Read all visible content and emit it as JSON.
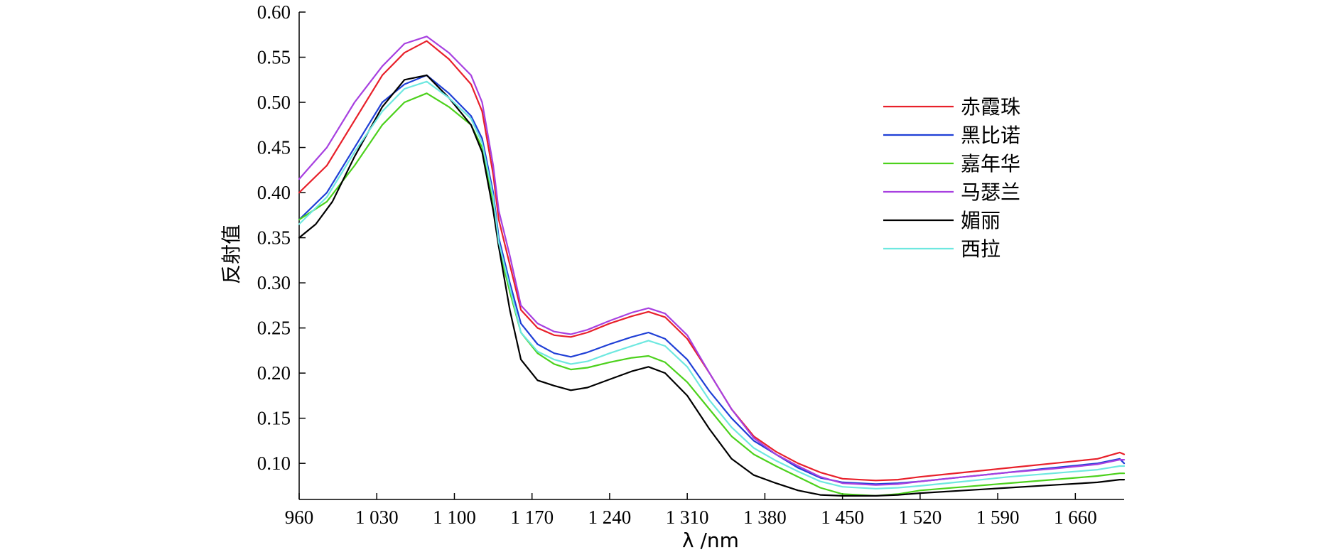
{
  "chart_data": {
    "type": "line",
    "xlabel": "λ /nm",
    "ylabel": "反射值",
    "xlim": [
      960,
      1704
    ],
    "ylim": [
      0.06,
      0.6
    ],
    "xticks": [
      960,
      1030,
      1100,
      1170,
      1240,
      1310,
      1380,
      1450,
      1520,
      1590,
      1660
    ],
    "xtick_labels": [
      "960",
      "1 030",
      "1 100",
      "1 170",
      "1 240",
      "1 310",
      "1 380",
      "1 450",
      "1 520",
      "1 590",
      "1 660"
    ],
    "yticks": [
      0.1,
      0.15,
      0.2,
      0.25,
      0.3,
      0.35,
      0.4,
      0.45,
      0.5,
      0.55,
      0.6
    ],
    "ytick_labels": [
      "0.10",
      "0.15",
      "0.20",
      "0.25",
      "0.30",
      "0.35",
      "0.40",
      "0.45",
      "0.50",
      "0.55",
      "0.60"
    ],
    "grid": false,
    "legend_position": "top-right",
    "series": [
      {
        "name": "赤霞珠",
        "color": "#e8202a",
        "x": [
          960,
          985,
          1010,
          1035,
          1055,
          1075,
          1095,
          1115,
          1125,
          1135,
          1140,
          1150,
          1160,
          1175,
          1190,
          1205,
          1220,
          1240,
          1260,
          1275,
          1290,
          1310,
          1330,
          1350,
          1370,
          1390,
          1410,
          1430,
          1450,
          1480,
          1500,
          1520,
          1560,
          1600,
          1640,
          1680,
          1700,
          1704
        ],
        "y": [
          0.4,
          0.43,
          0.48,
          0.53,
          0.555,
          0.568,
          0.548,
          0.52,
          0.49,
          0.42,
          0.37,
          0.32,
          0.27,
          0.25,
          0.242,
          0.24,
          0.245,
          0.255,
          0.263,
          0.268,
          0.262,
          0.238,
          0.2,
          0.16,
          0.13,
          0.113,
          0.1,
          0.09,
          0.083,
          0.081,
          0.082,
          0.085,
          0.09,
          0.095,
          0.1,
          0.105,
          0.112,
          0.11
        ]
      },
      {
        "name": "黑比诺",
        "color": "#1f3fd6",
        "x": [
          960,
          985,
          1010,
          1035,
          1055,
          1075,
          1095,
          1115,
          1125,
          1135,
          1140,
          1150,
          1160,
          1175,
          1190,
          1205,
          1220,
          1240,
          1260,
          1275,
          1290,
          1310,
          1330,
          1350,
          1370,
          1390,
          1410,
          1430,
          1450,
          1480,
          1500,
          1520,
          1560,
          1600,
          1640,
          1680,
          1700,
          1704
        ],
        "y": [
          0.37,
          0.4,
          0.45,
          0.5,
          0.52,
          0.53,
          0.51,
          0.485,
          0.46,
          0.4,
          0.35,
          0.3,
          0.255,
          0.232,
          0.222,
          0.218,
          0.223,
          0.232,
          0.24,
          0.245,
          0.238,
          0.215,
          0.18,
          0.15,
          0.125,
          0.11,
          0.095,
          0.084,
          0.079,
          0.077,
          0.078,
          0.08,
          0.085,
          0.09,
          0.095,
          0.1,
          0.105,
          0.1
        ]
      },
      {
        "name": "嘉年华",
        "color": "#4cd11c",
        "x": [
          960,
          985,
          1010,
          1035,
          1055,
          1075,
          1095,
          1115,
          1125,
          1135,
          1140,
          1150,
          1160,
          1175,
          1190,
          1205,
          1220,
          1240,
          1260,
          1275,
          1290,
          1310,
          1330,
          1350,
          1370,
          1390,
          1410,
          1430,
          1450,
          1480,
          1500,
          1520,
          1560,
          1600,
          1640,
          1680,
          1700,
          1704
        ],
        "y": [
          0.37,
          0.39,
          0.43,
          0.475,
          0.5,
          0.51,
          0.495,
          0.475,
          0.45,
          0.39,
          0.34,
          0.29,
          0.245,
          0.222,
          0.21,
          0.204,
          0.206,
          0.212,
          0.217,
          0.219,
          0.212,
          0.19,
          0.16,
          0.13,
          0.11,
          0.097,
          0.085,
          0.073,
          0.066,
          0.064,
          0.066,
          0.07,
          0.074,
          0.078,
          0.082,
          0.086,
          0.089,
          0.089
        ]
      },
      {
        "name": "马瑟兰",
        "color": "#a740e0",
        "x": [
          960,
          985,
          1010,
          1035,
          1055,
          1075,
          1095,
          1115,
          1125,
          1135,
          1140,
          1150,
          1160,
          1175,
          1190,
          1205,
          1220,
          1240,
          1260,
          1275,
          1290,
          1310,
          1330,
          1350,
          1370,
          1390,
          1410,
          1430,
          1450,
          1480,
          1500,
          1520,
          1560,
          1600,
          1640,
          1680,
          1700,
          1704
        ],
        "y": [
          0.415,
          0.45,
          0.5,
          0.54,
          0.565,
          0.573,
          0.555,
          0.53,
          0.5,
          0.43,
          0.38,
          0.33,
          0.275,
          0.255,
          0.246,
          0.243,
          0.248,
          0.258,
          0.267,
          0.272,
          0.266,
          0.242,
          0.2,
          0.16,
          0.128,
          0.11,
          0.097,
          0.085,
          0.078,
          0.076,
          0.077,
          0.08,
          0.085,
          0.09,
          0.094,
          0.099,
          0.104,
          0.104
        ]
      },
      {
        "name": "媚丽",
        "color": "#000000",
        "x": [
          960,
          975,
          990,
          1010,
          1035,
          1055,
          1075,
          1095,
          1115,
          1125,
          1135,
          1140,
          1150,
          1160,
          1175,
          1190,
          1205,
          1220,
          1240,
          1260,
          1275,
          1290,
          1310,
          1330,
          1350,
          1370,
          1390,
          1410,
          1430,
          1450,
          1480,
          1500,
          1520,
          1560,
          1600,
          1640,
          1680,
          1700,
          1704
        ],
        "y": [
          0.35,
          0.365,
          0.39,
          0.44,
          0.495,
          0.525,
          0.53,
          0.505,
          0.475,
          0.445,
          0.38,
          0.34,
          0.27,
          0.215,
          0.192,
          0.186,
          0.181,
          0.184,
          0.193,
          0.202,
          0.207,
          0.2,
          0.175,
          0.138,
          0.105,
          0.087,
          0.078,
          0.07,
          0.065,
          0.064,
          0.064,
          0.065,
          0.067,
          0.07,
          0.073,
          0.076,
          0.079,
          0.082,
          0.082
        ]
      },
      {
        "name": "西拉",
        "color": "#6ee8e0",
        "x": [
          960,
          985,
          1010,
          1035,
          1055,
          1075,
          1095,
          1115,
          1125,
          1135,
          1140,
          1150,
          1160,
          1175,
          1190,
          1205,
          1220,
          1240,
          1260,
          1275,
          1290,
          1310,
          1330,
          1350,
          1370,
          1390,
          1410,
          1430,
          1450,
          1480,
          1500,
          1520,
          1560,
          1600,
          1640,
          1680,
          1700,
          1704
        ],
        "y": [
          0.365,
          0.395,
          0.445,
          0.49,
          0.515,
          0.523,
          0.505,
          0.482,
          0.455,
          0.395,
          0.345,
          0.295,
          0.245,
          0.224,
          0.215,
          0.21,
          0.213,
          0.222,
          0.23,
          0.236,
          0.23,
          0.207,
          0.17,
          0.14,
          0.117,
          0.103,
          0.091,
          0.08,
          0.074,
          0.072,
          0.073,
          0.075,
          0.08,
          0.085,
          0.089,
          0.093,
          0.097,
          0.097
        ]
      }
    ]
  }
}
